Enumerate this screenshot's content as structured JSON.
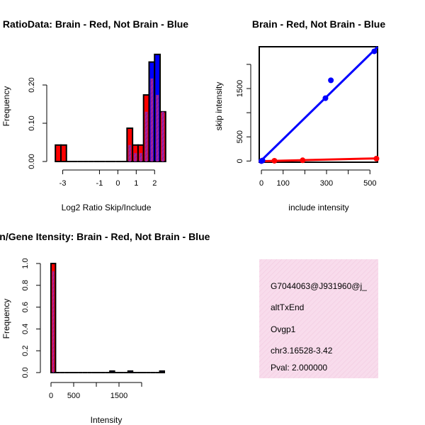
{
  "colors": {
    "brain": "#ff0000",
    "not_brain": "#0000ff",
    "overlap": "#a020a0",
    "info_bg": "#f8dcec",
    "pval": "#b00000"
  },
  "chart_data": [
    {
      "id": "ratio_hist",
      "type": "bar",
      "title": "RatioData: Brain - Red, Not Brain - Blue",
      "xlabel": "Log2 Ratio Skip/Include",
      "ylabel": "Frequency",
      "xlim": [
        -3.5,
        2.9
      ],
      "ylim": [
        0,
        0.25
      ],
      "xticks": [
        "-3",
        "-1",
        "0",
        "1",
        "2"
      ],
      "xtick_values": [
        -3,
        -1,
        0,
        1,
        2
      ],
      "yticks": [
        "0.00",
        "0.10",
        "0.20"
      ],
      "ytick_values": [
        0,
        0.1,
        0.2
      ],
      "bin_edges": [
        -3.4,
        -3.1,
        -2.8,
        -2.5,
        -2.2,
        -1.9,
        -1.6,
        -1.3,
        -1.0,
        -0.7,
        -0.4,
        -0.1,
        0.2,
        0.5,
        0.8,
        1.1,
        1.4,
        1.7,
        2.0,
        2.3,
        2.6
      ],
      "series": [
        {
          "name": "Brain",
          "values": [
            0.043,
            0.043,
            0,
            0,
            0,
            0,
            0,
            0,
            0,
            0,
            0,
            0,
            0,
            0.087,
            0.043,
            0.043,
            0.174,
            0.217,
            0.174,
            0.13
          ]
        },
        {
          "name": "Not Brain",
          "values": [
            0,
            0,
            0,
            0,
            0,
            0,
            0,
            0,
            0,
            0,
            0,
            0,
            0,
            0.043,
            0.022,
            0.022,
            0.13,
            0.26,
            0.28,
            0.13
          ]
        }
      ]
    },
    {
      "id": "scatter",
      "type": "scatter",
      "title": "Brain - Red, Not Brain - Blue",
      "xlabel": "include intensity",
      "ylabel": "skip intensity",
      "xlim": [
        -10,
        535
      ],
      "ylim": [
        -10,
        2350
      ],
      "xticks": [
        "0",
        "100",
        "300",
        "500"
      ],
      "xtick_values": [
        0,
        100,
        300,
        500
      ],
      "yticks": [
        "0",
        "500",
        "1500"
      ],
      "ytick_values": [
        0,
        500,
        1500
      ],
      "extra_ytick_values": [
        1000,
        2000
      ],
      "series": [
        {
          "name": "Brain",
          "x": [
            0,
            60,
            190,
            530
          ],
          "y": [
            0,
            5,
            15,
            50
          ],
          "fit": [
            [
              -10,
              -5
            ],
            [
              535,
              55
            ]
          ]
        },
        {
          "name": "Not Brain",
          "x": [
            0,
            5,
            295,
            320,
            520
          ],
          "y": [
            0,
            10,
            1300,
            1670,
            2270
          ],
          "fit": [
            [
              -10,
              -30
            ],
            [
              535,
              2360
            ]
          ]
        }
      ]
    },
    {
      "id": "intensity_hist",
      "type": "bar",
      "title": "Exon/Gene Itensity: Brain - Red, Not Brain - Blue",
      "xlabel": "Intensity",
      "ylabel": "Frequency",
      "xlim": [
        0,
        2500
      ],
      "ylim": [
        0,
        1.0
      ],
      "xticks": [
        "0",
        "500",
        "1500"
      ],
      "xtick_values": [
        0,
        500,
        1500
      ],
      "extra_xtick_values": [
        1000,
        2000
      ],
      "yticks": [
        "0.0",
        "0.2",
        "0.4",
        "0.6",
        "0.8",
        "1.0"
      ],
      "ytick_values": [
        0,
        0.2,
        0.4,
        0.6,
        0.8,
        1.0
      ],
      "bin_edges": [
        0,
        100,
        200,
        300,
        400,
        500,
        600,
        700,
        800,
        900,
        1000,
        1100,
        1200,
        1300,
        1400,
        1500,
        1600,
        1700,
        1800,
        1900,
        2000,
        2100,
        2200,
        2300,
        2400,
        2500
      ],
      "series": [
        {
          "name": "Brain",
          "values": [
            1.0,
            0,
            0,
            0,
            0,
            0,
            0,
            0,
            0,
            0,
            0,
            0,
            0,
            0,
            0,
            0,
            0,
            0,
            0,
            0,
            0,
            0,
            0,
            0,
            0
          ]
        },
        {
          "name": "Not Brain",
          "values": [
            0.93,
            0,
            0,
            0,
            0,
            0,
            0,
            0,
            0,
            0,
            0,
            0,
            0,
            0.014,
            0,
            0,
            0,
            0.014,
            0,
            0,
            0,
            0,
            0,
            0,
            0.014
          ]
        }
      ]
    }
  ],
  "info_box": {
    "probe_id": "G7044063@J931960@j_",
    "event_type": "altTxEnd",
    "gene": "Ovgp1",
    "location": "chr3.16528-3.42",
    "pval": "Pval: 2.000000"
  }
}
